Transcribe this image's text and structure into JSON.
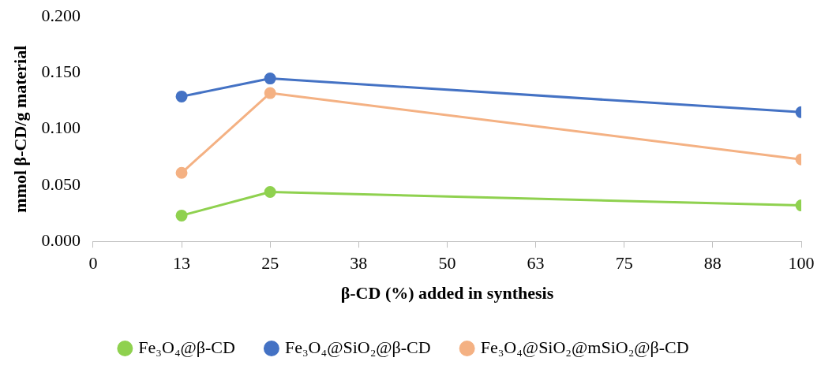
{
  "chart_data": {
    "type": "line",
    "xlabel": "β-CD (%) added in synthesis",
    "ylabel": "mmol β-CD/g material",
    "x": [
      12.5,
      25,
      100
    ],
    "series": [
      {
        "name": "Fe₃O₄@β-CD",
        "color": "#8fd14f",
        "values": [
          0.023,
          0.044,
          0.032
        ]
      },
      {
        "name": "Fe₃O₄@SiO₂@β-CD",
        "color": "#4472c4",
        "values": [
          0.129,
          0.145,
          0.115
        ]
      },
      {
        "name": "Fe₃O₄@SiO₂@mSiO₂@β-CD",
        "color": "#f4b183",
        "values": [
          0.061,
          0.132,
          0.073
        ]
      }
    ],
    "xlim": [
      0,
      100
    ],
    "xticks": [
      0,
      {
        "value": 12.5,
        "label": "13"
      },
      25,
      {
        "value": 37.5,
        "label": "38"
      },
      50,
      {
        "value": 62.5,
        "label": "63"
      },
      75,
      {
        "value": 87.5,
        "label": "88"
      },
      100
    ],
    "ylim": [
      0,
      0.2
    ],
    "yticks": [
      {
        "value": 0,
        "label": "0.000"
      },
      {
        "value": 0.05,
        "label": "0.050"
      },
      {
        "value": 0.1,
        "label": "0.100"
      },
      {
        "value": 0.15,
        "label": "0.150"
      },
      {
        "value": 0.2,
        "label": "0.200"
      }
    ],
    "grid": false,
    "legend": "bottom",
    "marker": "circle",
    "line_style": "solid"
  }
}
